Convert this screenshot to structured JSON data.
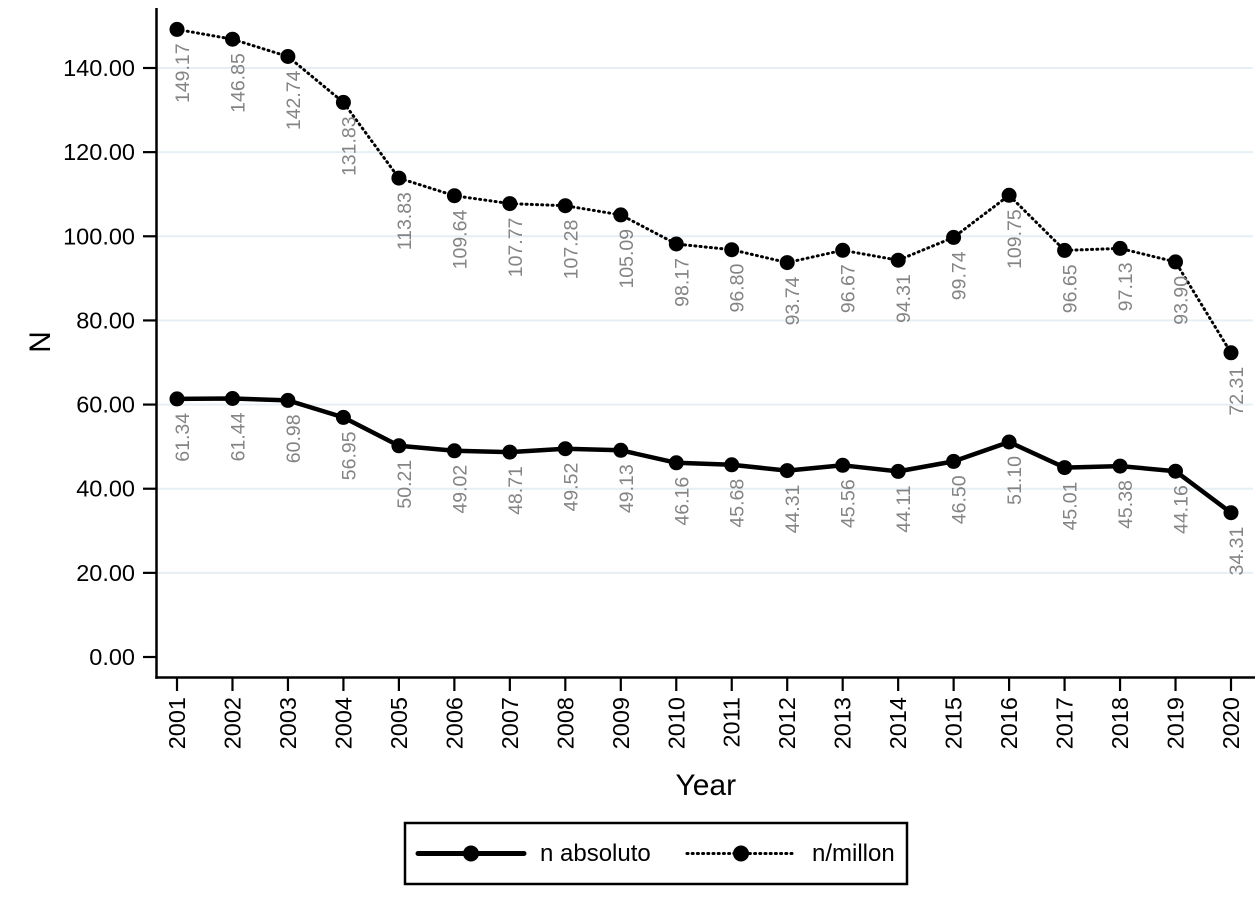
{
  "chart_data": {
    "type": "line",
    "title": "",
    "xlabel": "Year",
    "ylabel": "N",
    "x": [
      2001,
      2002,
      2003,
      2004,
      2005,
      2006,
      2007,
      2008,
      2009,
      2010,
      2011,
      2012,
      2013,
      2014,
      2015,
      2016,
      2017,
      2018,
      2019,
      2020
    ],
    "series": [
      {
        "name": "n absoluto",
        "line_style": "solid",
        "marker": "filled-circle",
        "color": "#000000",
        "values": [
          61.34,
          61.44,
          60.98,
          56.95,
          50.21,
          49.02,
          48.71,
          49.52,
          49.13,
          46.16,
          45.68,
          44.31,
          45.56,
          44.11,
          46.5,
          51.1,
          45.01,
          45.38,
          44.16,
          34.31
        ]
      },
      {
        "name": "n/millon",
        "line_style": "dotted",
        "marker": "filled-circle",
        "color": "#000000",
        "values": [
          149.17,
          146.85,
          142.74,
          131.83,
          113.83,
          109.64,
          107.77,
          107.28,
          105.09,
          98.17,
          96.8,
          93.74,
          96.67,
          94.31,
          99.74,
          109.75,
          96.65,
          97.13,
          93.9,
          72.31
        ]
      }
    ],
    "point_labels_visible": true,
    "point_label_decimals": 2,
    "y_ticks": [
      "0.00",
      "20.00",
      "40.00",
      "60.00",
      "80.00",
      "100.00",
      "120.00",
      "140.00"
    ],
    "y_tick_values": [
      0,
      20,
      40,
      60,
      80,
      100,
      120,
      140
    ],
    "ylim": [
      0,
      155
    ],
    "grid": "horizontal",
    "legend": {
      "position": "bottom",
      "border": true,
      "entries": [
        "n absoluto",
        "n/millon"
      ]
    },
    "colors": {
      "series": "#000000",
      "axis": "#000000",
      "tick_label": "#000000",
      "point_label": "#848484",
      "grid_line": "#e6eff3",
      "background": "#ffffff",
      "legend_border": "#000000"
    }
  }
}
